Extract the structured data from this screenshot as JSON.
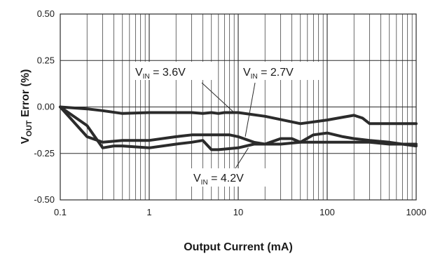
{
  "chart_data": {
    "type": "line",
    "title": "",
    "xlabel": "Output Current (mA)",
    "ylabel_main": "V",
    "ylabel_sub": "OUT",
    "ylabel_rest": " Error (%)",
    "x_scale": "log",
    "xlim": [
      0.1,
      1000
    ],
    "ylim": [
      -0.5,
      0.5
    ],
    "grid": true,
    "x_ticks": [
      {
        "value": 0.1,
        "label": "0.1"
      },
      {
        "value": 1,
        "label": "1"
      },
      {
        "value": 10,
        "label": "10"
      },
      {
        "value": 100,
        "label": "100"
      },
      {
        "value": 1000,
        "label": "1000"
      }
    ],
    "y_ticks": [
      {
        "value": 0.5,
        "label": "0.50"
      },
      {
        "value": 0.25,
        "label": "0.25"
      },
      {
        "value": 0.0,
        "label": "0.00"
      },
      {
        "value": -0.25,
        "label": "-0.25"
      },
      {
        "value": -0.5,
        "label": "-0.50"
      }
    ],
    "series": [
      {
        "key": "vin36",
        "x": [
          0.1,
          0.2,
          0.3,
          0.5,
          1,
          2,
          3,
          4,
          5,
          6,
          7,
          10,
          20,
          50,
          100,
          150,
          200,
          250,
          300,
          500,
          1000
        ],
        "y": [
          0.0,
          -0.01,
          -0.02,
          -0.035,
          -0.03,
          -0.03,
          -0.03,
          -0.035,
          -0.03,
          -0.035,
          -0.03,
          -0.03,
          -0.05,
          -0.09,
          -0.07,
          -0.055,
          -0.045,
          -0.06,
          -0.09,
          -0.09,
          -0.09
        ]
      },
      {
        "key": "vin27",
        "x": [
          0.1,
          0.2,
          0.3,
          0.5,
          1,
          2,
          3,
          5,
          8,
          10,
          15,
          20,
          30,
          40,
          50,
          70,
          100,
          150,
          200,
          300,
          500,
          700,
          1000
        ],
        "y": [
          0.0,
          -0.16,
          -0.19,
          -0.18,
          -0.18,
          -0.16,
          -0.15,
          -0.15,
          -0.15,
          -0.16,
          -0.19,
          -0.2,
          -0.17,
          -0.17,
          -0.19,
          -0.15,
          -0.14,
          -0.16,
          -0.17,
          -0.18,
          -0.19,
          -0.2,
          -0.21
        ]
      },
      {
        "key": "vin42",
        "x": [
          0.1,
          0.2,
          0.3,
          0.4,
          0.5,
          1,
          2,
          3,
          4,
          5,
          6,
          10,
          15,
          20,
          30,
          50,
          100,
          200,
          300,
          500,
          700,
          1000
        ],
        "y": [
          0.0,
          -0.1,
          -0.22,
          -0.21,
          -0.21,
          -0.22,
          -0.2,
          -0.19,
          -0.18,
          -0.23,
          -0.23,
          -0.22,
          -0.2,
          -0.2,
          -0.2,
          -0.19,
          -0.19,
          -0.19,
          -0.19,
          -0.2,
          -0.2,
          -0.2
        ]
      }
    ],
    "annotations": [
      {
        "main": "V",
        "sub": "IN",
        "text": " = 3.6V",
        "series": "vin36"
      },
      {
        "main": "V",
        "sub": "IN",
        "text": " = 2.7V",
        "series": "vin27"
      },
      {
        "main": "V",
        "sub": "IN",
        "text": " = 4.2V",
        "series": "vin42"
      }
    ],
    "line_color": "#2b2b2b",
    "grid_color": "#2b2b2b"
  }
}
